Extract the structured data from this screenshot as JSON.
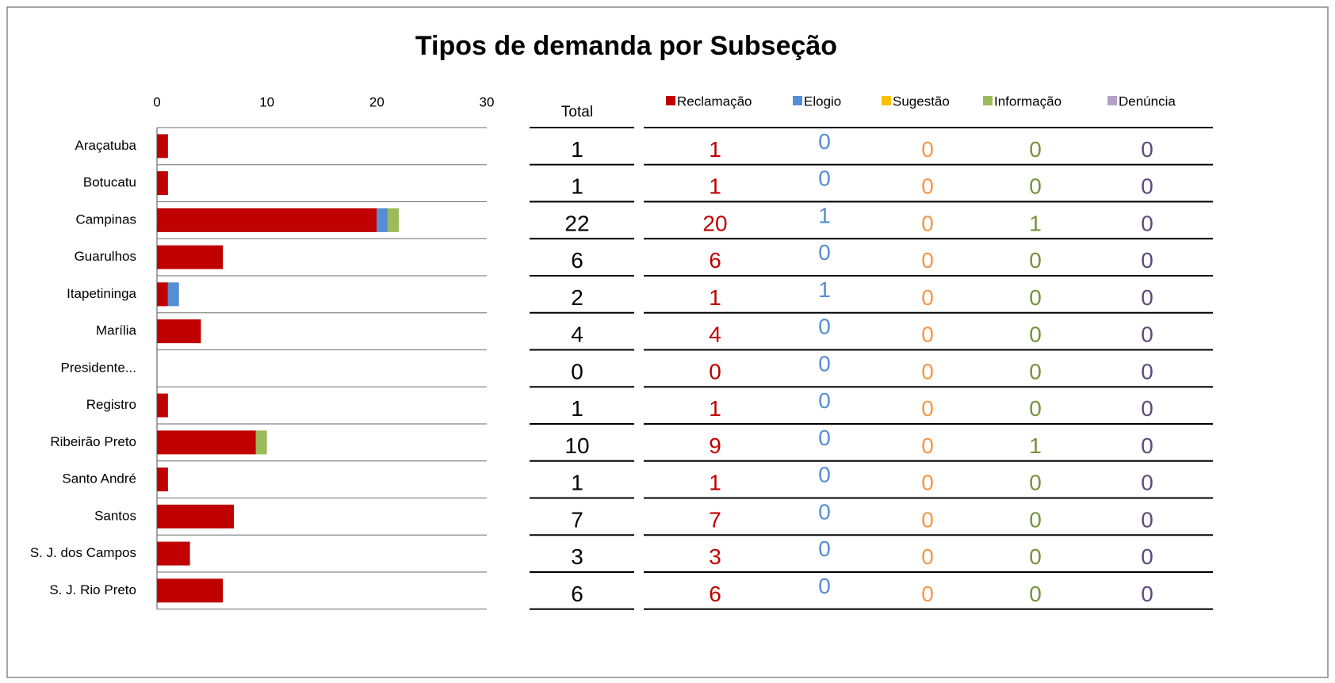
{
  "chart_data": {
    "type": "stacked_bar_table",
    "title": "Tipos de demanda por Subseção",
    "categories": [
      "Araçatuba",
      "Botucatu",
      "Campinas",
      "Guarulhos",
      "Itapetininga",
      "Marília",
      "Presidente...",
      "Registro",
      "Ribeirão Preto",
      "Santo André",
      "Santos",
      "S. J. dos Campos",
      "S. J. Rio Preto"
    ],
    "xlim": [
      0,
      30
    ],
    "xticks": [
      0,
      10,
      20,
      30
    ],
    "total_label": "Total",
    "totals": [
      1,
      1,
      22,
      6,
      2,
      4,
      0,
      1,
      10,
      1,
      7,
      3,
      6
    ],
    "series": [
      {
        "name": "Reclamação",
        "color": "#c00000",
        "text_color": "#c00000",
        "values": [
          1,
          1,
          20,
          6,
          1,
          4,
          0,
          1,
          9,
          1,
          7,
          3,
          6
        ]
      },
      {
        "name": "Elogio",
        "color": "#558ed5",
        "text_color": "#558ed5",
        "values": [
          0,
          0,
          1,
          0,
          1,
          0,
          0,
          0,
          0,
          0,
          0,
          0,
          0
        ]
      },
      {
        "name": "Sugestão",
        "color": "#ffc000",
        "text_color": "#f79646",
        "values": [
          0,
          0,
          0,
          0,
          0,
          0,
          0,
          0,
          0,
          0,
          0,
          0,
          0
        ]
      },
      {
        "name": "Informação",
        "color": "#9bbb59",
        "text_color": "#76923c",
        "values": [
          0,
          0,
          1,
          0,
          0,
          0,
          0,
          0,
          1,
          0,
          0,
          0,
          0
        ]
      },
      {
        "name": "Denúncia",
        "color": "#b3a2c7",
        "text_color": "#5f497a",
        "values": [
          0,
          0,
          0,
          0,
          0,
          0,
          0,
          0,
          0,
          0,
          0,
          0,
          0
        ]
      }
    ]
  }
}
